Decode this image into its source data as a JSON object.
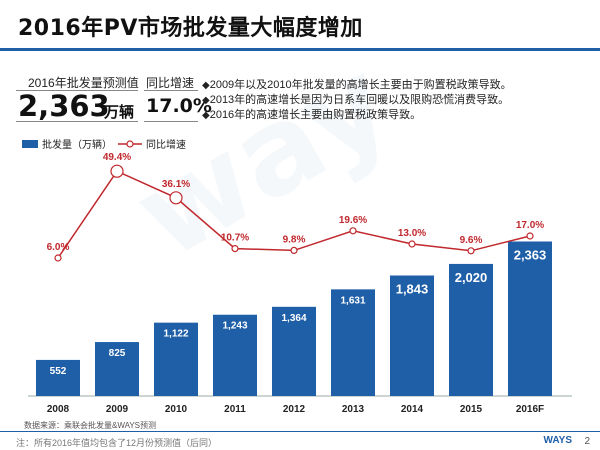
{
  "title": "2016年PV市场批发量大幅度增加",
  "kpi": {
    "forecast_label": "2016年批发量预测值",
    "forecast_value": "2,363",
    "forecast_unit": "万辆",
    "growth_label": "同比增速",
    "growth_value": "17.0%"
  },
  "notes": [
    "2009年以及2010年批发量的高增长主要由于购置税政策导致。",
    "2013年的高速增长是因为日系车回暖以及限购恐慌消费导致。",
    "2016年的高速增长主要由购置税政策导致。"
  ],
  "colors": {
    "bar": "#1f5fa8",
    "line": "#c0282d",
    "accent": "#1f5fa8"
  },
  "chart_data": {
    "type": "bar",
    "categories": [
      "2008",
      "2009",
      "2010",
      "2011",
      "2012",
      "2013",
      "2014",
      "2015",
      "2016F"
    ],
    "series": [
      {
        "name": "批发量（万辆）",
        "type": "bar",
        "values": [
          552,
          825,
          1122,
          1243,
          1364,
          1631,
          1843,
          2020,
          2363
        ],
        "labels": [
          "552",
          "825",
          "1,122",
          "1,243",
          "1,364",
          "1,631",
          "1,843",
          "2,020",
          "2,363"
        ]
      },
      {
        "name": "同比增速",
        "type": "line",
        "values": [
          6.0,
          49.4,
          36.1,
          10.7,
          9.8,
          19.6,
          13.0,
          9.6,
          17.0
        ],
        "labels": [
          "6.0%",
          "49.4%",
          "36.1%",
          "10.7%",
          "9.8%",
          "19.6%",
          "13.0%",
          "9.6%",
          "17.0%"
        ]
      }
    ],
    "legend_position": "top-left",
    "grid": false,
    "ylim_bar": [
      0,
      2600
    ],
    "ylim_line": [
      -20,
      60
    ]
  },
  "source": "数据来源：乘联会批发量&WAYS预测",
  "footnote": "注：所有2016年值均包含了12月份预测值（后同）",
  "logo": "WAYS",
  "page_number": "2",
  "watermark": "way"
}
